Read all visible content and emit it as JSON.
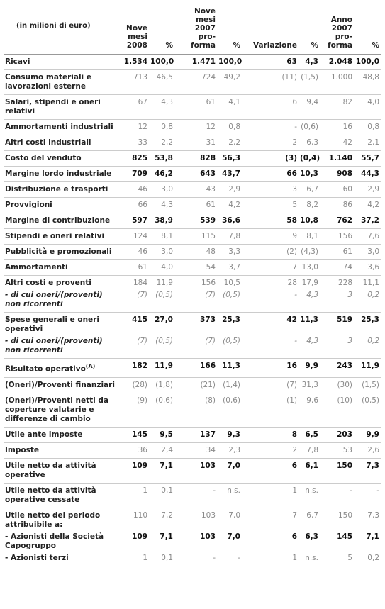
{
  "header": {
    "columns": [
      "(in milioni di euro)",
      "Nove mesi 2008",
      "%",
      "Nove mesi 2007 pro-forma",
      "%",
      "Variazione",
      "%",
      "Anno 2007 pro-forma",
      "%"
    ]
  },
  "table": {
    "rows": [
      {
        "label": "Ricavi",
        "bold": true,
        "values": [
          "1.534",
          "100,0",
          "1.471",
          "100,0",
          "63",
          "4,3",
          "2.048",
          "100,0"
        ]
      },
      {
        "label": "Consumo materiali e lavorazioni esterne",
        "values": [
          "713",
          "46,5",
          "724",
          "49,2",
          "(11)",
          "(1,5)",
          "1.000",
          "48,8"
        ]
      },
      {
        "label": "Salari, stipendi e oneri relativi",
        "values": [
          "67",
          "4,3",
          "61",
          "4,1",
          "6",
          "9,4",
          "82",
          "4,0"
        ]
      },
      {
        "label": "Ammortamenti industriali",
        "values": [
          "12",
          "0,8",
          "12",
          "0,8",
          "-",
          "(0,6)",
          "16",
          "0,8"
        ]
      },
      {
        "label": "Altri costi industriali",
        "values": [
          "33",
          "2,2",
          "31",
          "2,2",
          "2",
          "6,3",
          "42",
          "2,1"
        ]
      },
      {
        "label": "Costo del venduto",
        "bold": true,
        "values": [
          "825",
          "53,8",
          "828",
          "56,3",
          "(3)",
          "(0,4)",
          "1.140",
          "55,7"
        ]
      },
      {
        "label": "Margine lordo industriale",
        "bold": true,
        "values": [
          "709",
          "46,2",
          "643",
          "43,7",
          "66",
          "10,3",
          "908",
          "44,3"
        ]
      },
      {
        "label": "Distribuzione e trasporti",
        "values": [
          "46",
          "3,0",
          "43",
          "2,9",
          "3",
          "6,7",
          "60",
          "2,9"
        ]
      },
      {
        "label": "Provvigioni",
        "values": [
          "66",
          "4,3",
          "61",
          "4,2",
          "5",
          "8,2",
          "86",
          "4,2"
        ]
      },
      {
        "label": "Margine di contribuzione",
        "bold": true,
        "values": [
          "597",
          "38,9",
          "539",
          "36,6",
          "58",
          "10,8",
          "762",
          "37,2"
        ]
      },
      {
        "label": "Stipendi e oneri relativi",
        "values": [
          "124",
          "8,1",
          "115",
          "7,8",
          "9",
          "8,1",
          "156",
          "7,6"
        ]
      },
      {
        "label": "Pubblicità e promozionali",
        "values": [
          "46",
          "3,0",
          "48",
          "3,3",
          "(2)",
          "(4,3)",
          "61",
          "3,0"
        ]
      },
      {
        "label": "Ammortamenti",
        "values": [
          "61",
          "4,0",
          "54",
          "3,7",
          "7",
          "13,0",
          "74",
          "3,6"
        ]
      },
      {
        "label": "Altri costi e proventi",
        "values": [
          "184",
          "11,9",
          "156",
          "10,5",
          "28",
          "17,9",
          "228",
          "11,1"
        ],
        "details": [
          {
            "label": "- di cui oneri/(proventi) non ricorrenti",
            "italic": true,
            "values": [
              "(7)",
              "(0,5)",
              "(7)",
              "(0,5)",
              "-",
              "4,3",
              "3",
              "0,2"
            ]
          }
        ]
      },
      {
        "label": "Spese generali e oneri operativi",
        "bold": true,
        "values": [
          "415",
          "27,0",
          "373",
          "25,3",
          "42",
          "11,3",
          "519",
          "25,3"
        ],
        "details": [
          {
            "label": "- di cui oneri/(proventi) non ricorrenti",
            "italic": true,
            "values": [
              "(7)",
              "(0,5)",
              "(7)",
              "(0,5)",
              "-",
              "4,3",
              "3",
              "0,2"
            ]
          }
        ]
      },
      {
        "label": "Risultato operativo",
        "note": "(A)",
        "bold": true,
        "values": [
          "182",
          "11,9",
          "166",
          "11,3",
          "16",
          "9,9",
          "243",
          "11,9"
        ]
      },
      {
        "label": "(Oneri)/Proventi finanziari",
        "values": [
          "(28)",
          "(1,8)",
          "(21)",
          "(1,4)",
          "(7)",
          "31,3",
          "(30)",
          "(1,5)"
        ]
      },
      {
        "label": "(Oneri)/Proventi netti da coperture valutarie e differenze di cambio",
        "values": [
          "(9)",
          "(0,6)",
          "(8)",
          "(0,6)",
          "(1)",
          "9,6",
          "(10)",
          "(0,5)"
        ]
      },
      {
        "label": "Utile ante imposte",
        "bold": true,
        "values": [
          "145",
          "9,5",
          "137",
          "9,3",
          "8",
          "6,5",
          "203",
          "9,9"
        ]
      },
      {
        "label": "Imposte",
        "values": [
          "36",
          "2,4",
          "34",
          "2,3",
          "2",
          "7,8",
          "53",
          "2,6"
        ]
      },
      {
        "label": "Utile netto da attività operative",
        "bold": true,
        "values": [
          "109",
          "7,1",
          "103",
          "7,0",
          "6",
          "6,1",
          "150",
          "7,3"
        ]
      },
      {
        "label": "Utile netto da attività operative cessate",
        "values": [
          "1",
          "0,1",
          "-",
          "n.s.",
          "1",
          "n.s.",
          "-",
          "-"
        ]
      },
      {
        "label": "Utile netto del periodo attribuibile a:",
        "values": [
          "110",
          "7,2",
          "103",
          "7,0",
          "7",
          "6,7",
          "150",
          "7,3"
        ],
        "details": [
          {
            "label": "- Azionisti della Società Capogruppo",
            "bold": true,
            "values": [
              "109",
              "7,1",
              "103",
              "7,0",
              "6",
              "6,3",
              "145",
              "7,1"
            ]
          },
          {
            "label": "- Azionisti terzi",
            "values": [
              "1",
              "0,1",
              "-",
              "-",
              "1",
              "n.s.",
              "5",
              "0,2"
            ]
          }
        ]
      }
    ]
  }
}
